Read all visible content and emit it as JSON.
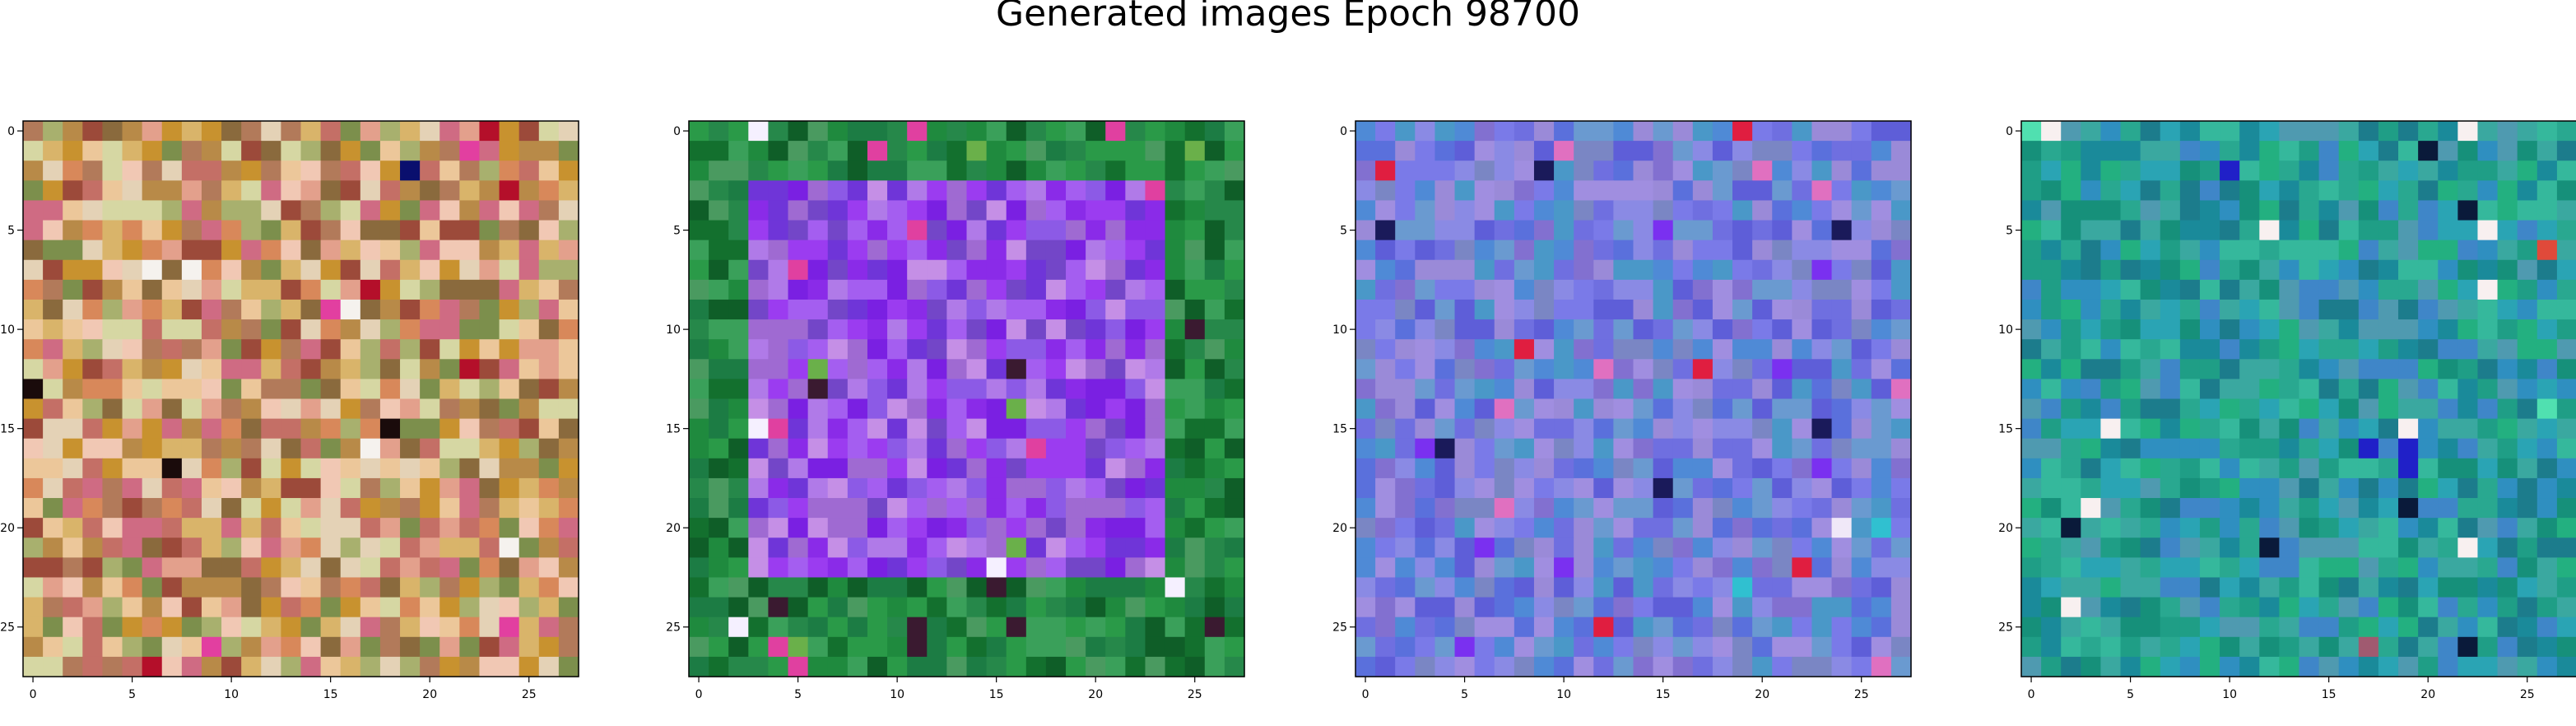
{
  "title": "Generated images Epoch 98700",
  "chart_data": {
    "type": "heatmap",
    "title": "Generated images Epoch 98700",
    "panel_count": 4,
    "image_shape": [
      28,
      28,
      3
    ],
    "xlim": [
      -0.5,
      27.5
    ],
    "ylim": [
      27.5,
      -0.5
    ],
    "xticks": [
      0,
      5,
      10,
      15,
      20,
      25
    ],
    "yticks": [
      0,
      5,
      10,
      15,
      20,
      25
    ],
    "tick_labels": [
      "0",
      "5",
      "10",
      "15",
      "20",
      "25"
    ],
    "panels": [
      {
        "name": "",
        "palette": [
          "#c8922f",
          "#b88a48",
          "#d9b46a",
          "#e4d2b6",
          "#f1c8b4",
          "#c46f66",
          "#9c4a3a",
          "#a8b06e",
          "#7c8f4c",
          "#d6d7a3",
          "#e3a08c",
          "#8a6a3d",
          "#cf6b83",
          "#b27a5a",
          "#ecc79a",
          "#d8885a"
        ],
        "accents": [
          "#b40f2a",
          "#1a0b0b",
          "#0a0f6e",
          "#f5f2ee",
          "#e23fa0"
        ]
      },
      {
        "name": "",
        "palette": [
          "#8a2be8",
          "#9b3cf0",
          "#7a20e2",
          "#a45ef0",
          "#b07ae8",
          "#6f35d8",
          "#8c5ae6",
          "#9f6ad2",
          "#c58fe6",
          "#7346c8"
        ],
        "border": [
          "#1f8a3e",
          "#2a9a48",
          "#13702e",
          "#3aa05a",
          "#0f5e28",
          "#26884a",
          "#4a9a60",
          "#1c7c44"
        ],
        "accents": [
          "#e040a0",
          "#6ab04a",
          "#f5f0ff",
          "#3a1a30"
        ]
      },
      {
        "name": "",
        "palette": [
          "#6f6fe0",
          "#7a7ae8",
          "#8a8ae4",
          "#5a70dc",
          "#9a8ad8",
          "#4f8ad6",
          "#6a9ad0",
          "#8270d0",
          "#5e5ed8",
          "#a08ee0",
          "#4a98c8",
          "#7a86c4"
        ],
        "accents": [
          "#e01e40",
          "#e070c0",
          "#f0e8f8",
          "#1a1a5a",
          "#30c0d0",
          "#7a30f0"
        ]
      },
      {
        "name": "",
        "palette": [
          "#1f9e86",
          "#29a890",
          "#1a8a9a",
          "#3aa8a0",
          "#2f8fc0",
          "#23b080",
          "#4f9ab0",
          "#16907a",
          "#2aa4b4",
          "#3f86c8",
          "#1c7c8c",
          "#35b89c"
        ],
        "accents": [
          "#e04a3a",
          "#f8f0f0",
          "#0a1a3a",
          "#2020c8",
          "#a05a70",
          "#50e0b0"
        ]
      }
    ]
  }
}
